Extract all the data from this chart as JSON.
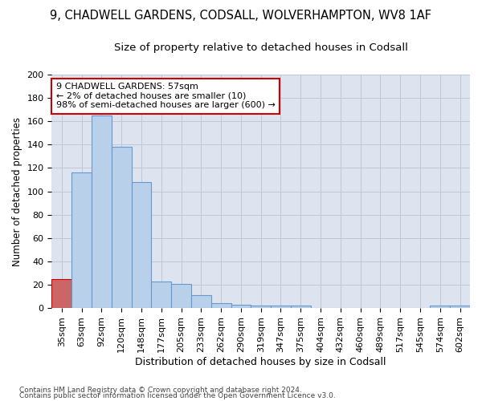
{
  "title1": "9, CHADWELL GARDENS, CODSALL, WOLVERHAMPTON, WV8 1AF",
  "title2": "Size of property relative to detached houses in Codsall",
  "xlabel": "Distribution of detached houses by size in Codsall",
  "ylabel": "Number of detached properties",
  "categories": [
    "35sqm",
    "63sqm",
    "92sqm",
    "120sqm",
    "148sqm",
    "177sqm",
    "205sqm",
    "233sqm",
    "262sqm",
    "290sqm",
    "319sqm",
    "347sqm",
    "375sqm",
    "404sqm",
    "432sqm",
    "460sqm",
    "489sqm",
    "517sqm",
    "545sqm",
    "574sqm",
    "602sqm"
  ],
  "values": [
    25,
    116,
    165,
    138,
    108,
    23,
    21,
    11,
    4,
    3,
    2,
    2,
    2,
    0,
    0,
    0,
    0,
    0,
    0,
    2,
    2
  ],
  "bar_color": "#b8d0ea",
  "bar_edge_color": "#6699cc",
  "highlight_color": "#cc6666",
  "highlight_edge_color": "#cc0000",
  "highlight_index": 0,
  "annotation_text": "9 CHADWELL GARDENS: 57sqm\n← 2% of detached houses are smaller (10)\n98% of semi-detached houses are larger (600) →",
  "annotation_box_color": "#ffffff",
  "annotation_edge_color": "#cc0000",
  "ylim": [
    0,
    200
  ],
  "yticks": [
    0,
    20,
    40,
    60,
    80,
    100,
    120,
    140,
    160,
    180,
    200
  ],
  "grid_color": "#c0c8d8",
  "bg_color": "#dde4ef",
  "footer1": "Contains HM Land Registry data © Crown copyright and database right 2024.",
  "footer2": "Contains public sector information licensed under the Open Government Licence v3.0.",
  "title1_fontsize": 10.5,
  "title2_fontsize": 9.5,
  "xlabel_fontsize": 9,
  "ylabel_fontsize": 8.5,
  "tick_fontsize": 8,
  "footer_fontsize": 6.5
}
